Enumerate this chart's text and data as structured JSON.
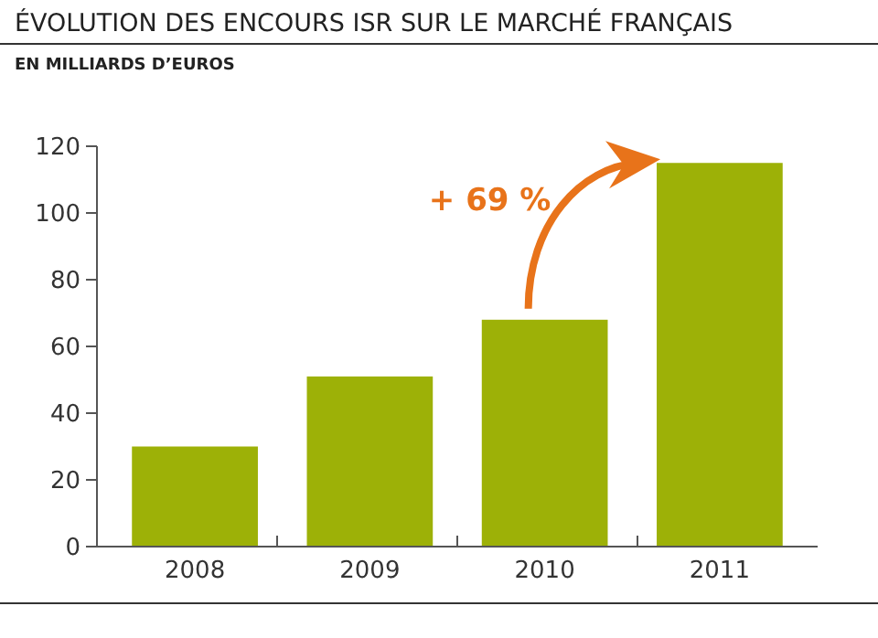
{
  "chart_data": {
    "type": "bar",
    "title": "ÉVOLUTION DES ENCOURS ISR SUR LE MARCHÉ FRANÇAIS",
    "subtitle": "EN MILLIARDS D’EUROS",
    "categories": [
      "2008",
      "2009",
      "2010",
      "2011"
    ],
    "values": [
      30,
      51,
      68,
      115
    ],
    "color": "#9db107",
    "ylim": [
      0,
      120
    ],
    "yticks": [
      0,
      20,
      40,
      60,
      80,
      100,
      120
    ],
    "grid": false,
    "annotations": [
      "+ 69 %"
    ]
  }
}
